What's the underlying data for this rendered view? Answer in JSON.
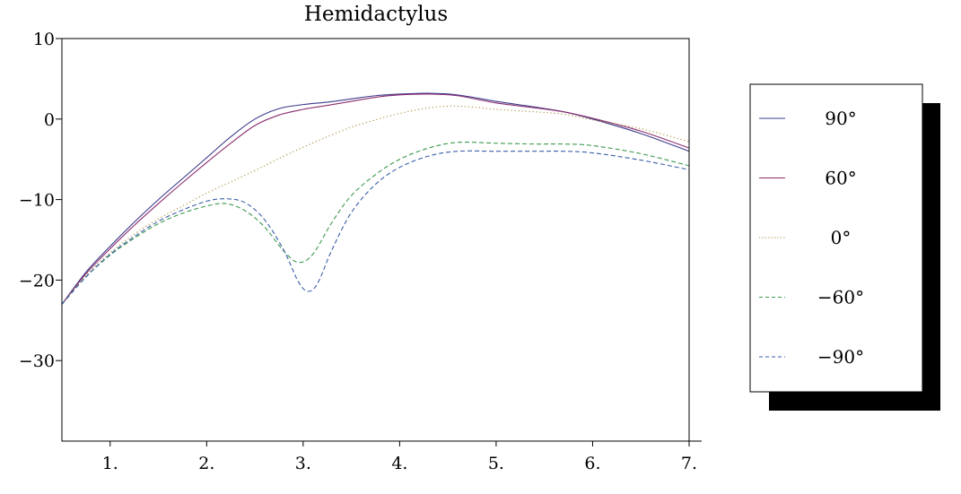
{
  "chart_data": {
    "type": "line",
    "title": "Hemidactylus",
    "xlabel": "",
    "ylabel": "",
    "xlim": [
      0.5,
      7.0
    ],
    "ylim": [
      -40,
      10
    ],
    "x_ticks": [
      {
        "value": 1,
        "label": "1."
      },
      {
        "value": 2,
        "label": "2."
      },
      {
        "value": 3,
        "label": "3."
      },
      {
        "value": 4,
        "label": "4."
      },
      {
        "value": 5,
        "label": "5."
      },
      {
        "value": 6,
        "label": "6."
      },
      {
        "value": 7,
        "label": "7."
      }
    ],
    "y_ticks": [
      {
        "value": 10,
        "label": "10"
      },
      {
        "value": 0,
        "label": "0"
      },
      {
        "value": -10,
        "label": "−10"
      },
      {
        "value": -20,
        "label": "−20"
      },
      {
        "value": -30,
        "label": "−30"
      }
    ],
    "grid": false,
    "legend_position": "right",
    "series": [
      {
        "name": "90°",
        "color": "#3a3a8c",
        "dash": "solid",
        "x": [
          0.5,
          0.75,
          1.0,
          1.25,
          1.5,
          1.75,
          2.0,
          2.25,
          2.5,
          2.75,
          3.0,
          3.25,
          3.5,
          3.75,
          4.0,
          4.3,
          4.6,
          5.0,
          5.4,
          5.7,
          6.0,
          6.5,
          7.0
        ],
        "y": [
          -23,
          -19,
          -15.8,
          -12.8,
          -10.0,
          -7.4,
          -4.8,
          -2.2,
          0.0,
          1.3,
          1.8,
          2.1,
          2.5,
          2.9,
          3.1,
          3.2,
          3.0,
          2.2,
          1.5,
          0.9,
          0.0,
          -1.8,
          -4.0
        ]
      },
      {
        "name": "60°",
        "color": "#8b2d6e",
        "dash": "solid",
        "x": [
          0.5,
          0.75,
          1.0,
          1.25,
          1.5,
          1.75,
          2.0,
          2.25,
          2.5,
          2.75,
          3.0,
          3.25,
          3.5,
          3.75,
          4.0,
          4.3,
          4.6,
          5.0,
          5.4,
          5.7,
          6.0,
          6.5,
          7.0
        ],
        "y": [
          -23,
          -19.2,
          -16.1,
          -13.2,
          -10.5,
          -7.9,
          -5.4,
          -3.0,
          -0.8,
          0.5,
          1.2,
          1.7,
          2.2,
          2.7,
          3.0,
          3.1,
          2.9,
          2.0,
          1.4,
          0.9,
          0.1,
          -1.5,
          -3.6
        ]
      },
      {
        "name": "0°",
        "color": "#a88e3a",
        "dash": "dotted",
        "x": [
          0.5,
          0.75,
          1.0,
          1.25,
          1.5,
          1.75,
          2.0,
          2.25,
          2.5,
          2.75,
          3.0,
          3.25,
          3.5,
          3.75,
          4.0,
          4.25,
          4.5,
          4.75,
          5.0,
          5.4,
          5.7,
          6.0,
          6.5,
          7.0
        ],
        "y": [
          -23,
          -19.4,
          -16.6,
          -14.3,
          -12.4,
          -10.8,
          -9.2,
          -7.8,
          -6.4,
          -4.9,
          -3.5,
          -2.2,
          -1.0,
          -0.1,
          0.7,
          1.3,
          1.6,
          1.5,
          1.2,
          0.9,
          0.6,
          -0.1,
          -1.2,
          -2.8
        ]
      },
      {
        "name": "−60°",
        "color": "#3c9a4e",
        "dash": "dashed",
        "x": [
          0.5,
          0.75,
          1.0,
          1.25,
          1.5,
          1.75,
          2.0,
          2.2,
          2.4,
          2.6,
          2.8,
          2.95,
          3.1,
          3.3,
          3.5,
          3.75,
          4.0,
          4.3,
          4.6,
          5.0,
          5.4,
          5.7,
          6.0,
          6.5,
          7.0
        ],
        "y": [
          -23,
          -19.6,
          -16.9,
          -14.8,
          -13.0,
          -11.7,
          -10.8,
          -10.5,
          -11.4,
          -13.4,
          -16.4,
          -17.8,
          -16.8,
          -12.8,
          -9.5,
          -6.9,
          -5.0,
          -3.6,
          -2.9,
          -3.0,
          -3.1,
          -3.1,
          -3.3,
          -4.3,
          -5.8
        ]
      },
      {
        "name": "−90°",
        "color": "#3a5ea8",
        "dash": "dashed",
        "x": [
          0.5,
          0.75,
          1.0,
          1.25,
          1.5,
          1.75,
          2.0,
          2.2,
          2.4,
          2.6,
          2.8,
          2.95,
          3.05,
          3.15,
          3.3,
          3.5,
          3.75,
          4.0,
          4.3,
          4.6,
          5.0,
          5.4,
          5.7,
          6.0,
          6.5,
          7.0
        ],
        "y": [
          -23,
          -19.6,
          -16.8,
          -14.6,
          -12.7,
          -11.3,
          -10.2,
          -9.9,
          -10.4,
          -12.5,
          -16.3,
          -20.2,
          -21.4,
          -20.4,
          -16.2,
          -11.6,
          -8.1,
          -6.0,
          -4.6,
          -4.0,
          -4.0,
          -4.0,
          -4.0,
          -4.2,
          -5.1,
          -6.3
        ]
      }
    ]
  }
}
